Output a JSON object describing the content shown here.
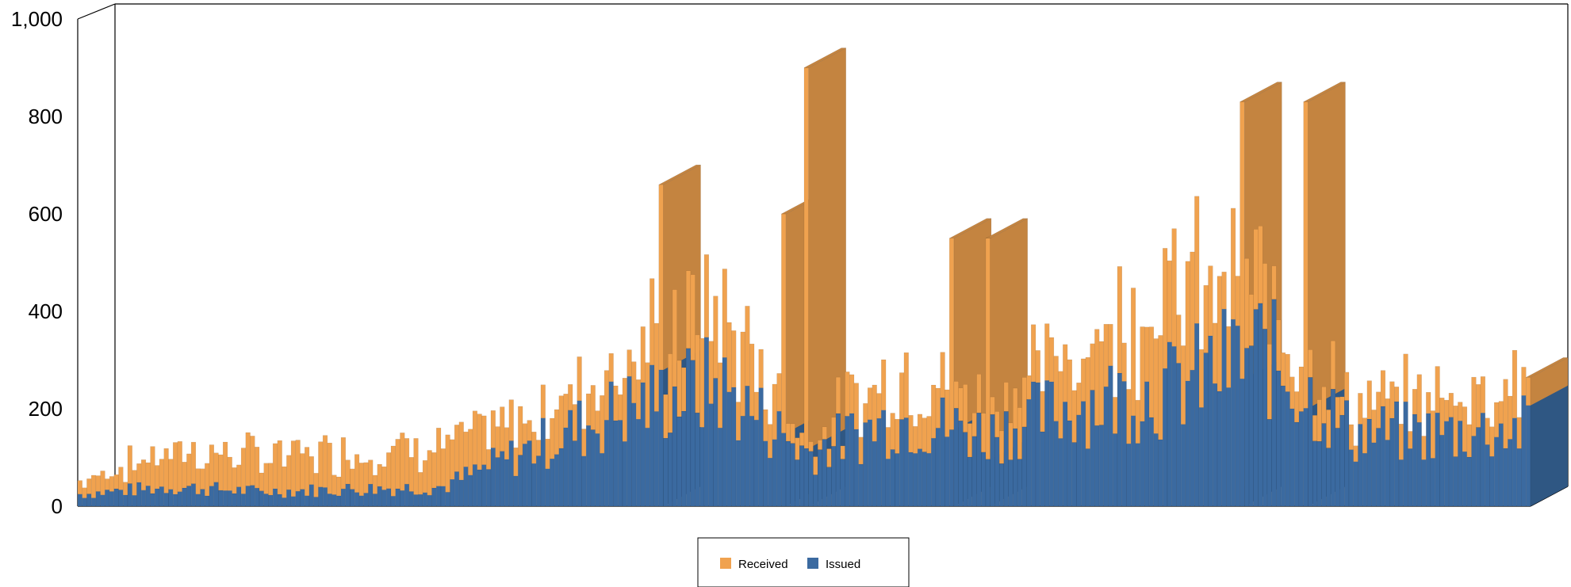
{
  "chart_data": {
    "type": "bar",
    "stacked": true,
    "three_d": true,
    "bar_count": 320,
    "y_ticks": [
      "0",
      "200",
      "400",
      "600",
      "800",
      "1,000"
    ],
    "ylim": [
      0,
      1000
    ],
    "legend_position": "bottom-center",
    "grid": false,
    "series": [
      {
        "name": "Received",
        "color": "#f0a24f",
        "side_color": "#c48440"
      },
      {
        "name": "Issued",
        "color": "#3b6aa0",
        "side_color": "#2f5783"
      }
    ],
    "approx_envelope": {
      "x_index": [
        0,
        20,
        40,
        60,
        80,
        100,
        120,
        140,
        160,
        180,
        200,
        220,
        240,
        260,
        280,
        300,
        319
      ],
      "issued": [
        25,
        40,
        30,
        35,
        40,
        120,
        200,
        250,
        110,
        180,
        150,
        210,
        240,
        320,
        150,
        150,
        160
      ],
      "received": [
        30,
        90,
        80,
        90,
        100,
        160,
        280,
        380,
        120,
        250,
        190,
        300,
        420,
        420,
        180,
        200,
        240
      ],
      "spikes": [
        [
          128,
          660
        ],
        [
          155,
          600
        ],
        [
          160,
          900
        ],
        [
          192,
          550
        ],
        [
          200,
          550
        ],
        [
          256,
          830
        ],
        [
          270,
          830
        ]
      ]
    }
  }
}
